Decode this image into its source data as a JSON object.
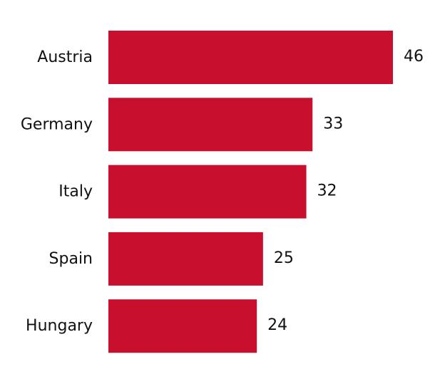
{
  "chart_data": {
    "type": "bar",
    "orientation": "horizontal",
    "categories": [
      "Austria",
      "Germany",
      "Italy",
      "Spain",
      "Hungary"
    ],
    "values": [
      46,
      33,
      32,
      25,
      24
    ],
    "bar_color": "#C8102E",
    "xlim": [
      0,
      46
    ],
    "grid": false,
    "legend": "none",
    "title": "",
    "xlabel": "",
    "ylabel": ""
  }
}
